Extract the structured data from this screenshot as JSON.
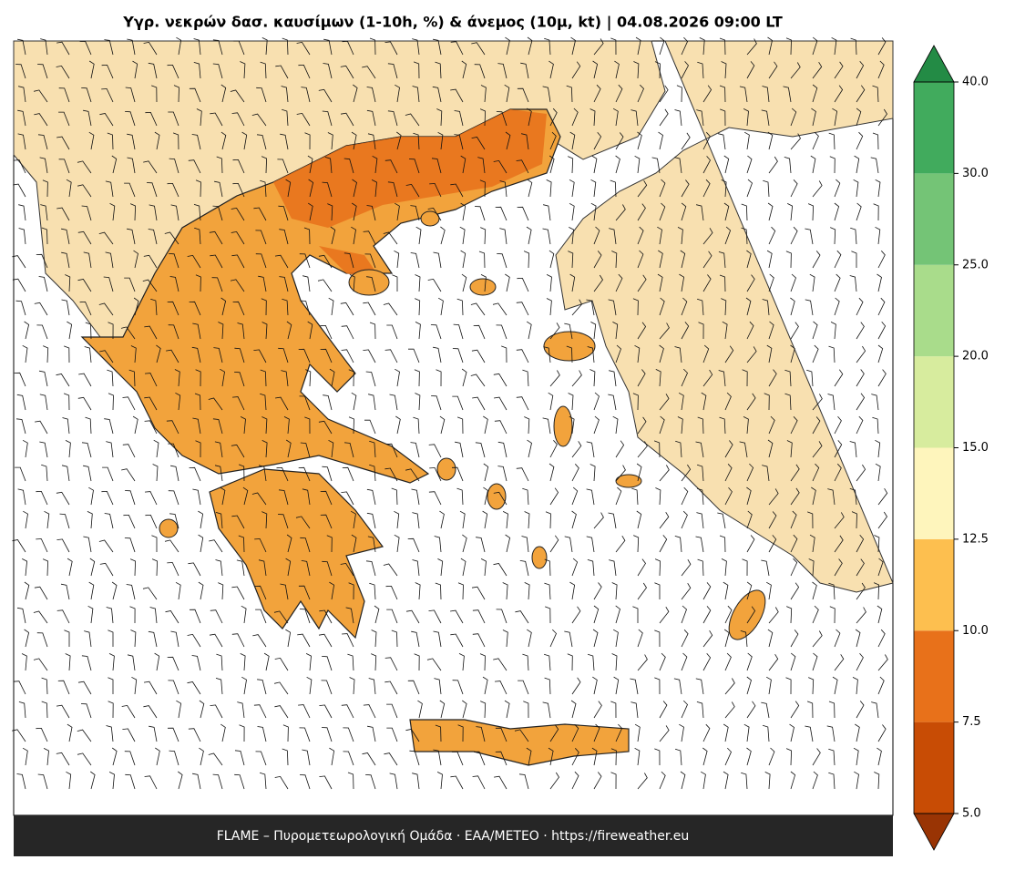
{
  "title": "Υγρ. νεκρών δασ. καυσίμων (1-10h, %) & άνεμος (10μ, kt)  |  04.08.2026 09:00 LT",
  "footer": "FLAME – Πυρομετεωρολογική Ομάδα · ΕΑΑ/METEO · https://fireweather.eu",
  "colorbar": {
    "ticks": [
      {
        "value": 5,
        "label": "5.0"
      },
      {
        "value": 7.5,
        "label": "7.5"
      },
      {
        "value": 10,
        "label": "10.0"
      },
      {
        "value": 12.5,
        "label": "12.5"
      },
      {
        "value": 15,
        "label": "15.0"
      },
      {
        "value": 20,
        "label": "20.0"
      },
      {
        "value": 25,
        "label": "25.0"
      },
      {
        "value": 30,
        "label": "30.0"
      },
      {
        "value": 40,
        "label": "40.0"
      }
    ],
    "colors": [
      "#c84c05",
      "#e8711a",
      "#fdbf4f",
      "#fef5bc",
      "#d7ec9e",
      "#a9dc8b",
      "#74c476",
      "#41ab5d"
    ],
    "under_color": "#993404",
    "over_color": "#238b45"
  }
}
